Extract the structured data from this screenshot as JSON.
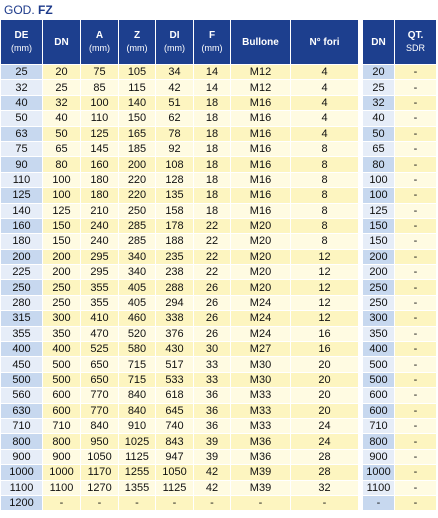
{
  "header": {
    "prefix": "GOD.",
    "code": "FZ"
  },
  "table": {
    "columns": [
      [
        "DE",
        "(mm)"
      ],
      [
        "DN"
      ],
      [
        "A",
        "(mm)"
      ],
      [
        "Z",
        "(mm)"
      ],
      [
        "DI",
        "(mm)"
      ],
      [
        "F",
        "(mm)"
      ],
      [
        "Bullone"
      ],
      [
        "N° fori"
      ],
      [
        "DN"
      ],
      [
        "QT.",
        "SDR"
      ]
    ],
    "rows": [
      [
        25,
        20,
        75,
        105,
        34,
        14,
        "M12",
        4,
        20,
        "-"
      ],
      [
        32,
        25,
        85,
        115,
        42,
        14,
        "M12",
        4,
        25,
        "-"
      ],
      [
        40,
        32,
        100,
        140,
        51,
        18,
        "M16",
        4,
        32,
        "-"
      ],
      [
        50,
        40,
        110,
        150,
        62,
        18,
        "M16",
        4,
        40,
        "-"
      ],
      [
        63,
        50,
        125,
        165,
        78,
        18,
        "M16",
        4,
        50,
        "-"
      ],
      [
        75,
        65,
        145,
        185,
        92,
        18,
        "M16",
        8,
        65,
        "-"
      ],
      [
        90,
        80,
        160,
        200,
        108,
        18,
        "M16",
        8,
        80,
        "-"
      ],
      [
        110,
        100,
        180,
        220,
        128,
        18,
        "M16",
        8,
        100,
        "-"
      ],
      [
        125,
        100,
        180,
        220,
        135,
        18,
        "M16",
        8,
        100,
        "-"
      ],
      [
        140,
        125,
        210,
        250,
        158,
        18,
        "M16",
        8,
        125,
        "-"
      ],
      [
        160,
        150,
        240,
        285,
        178,
        22,
        "M20",
        8,
        150,
        "-"
      ],
      [
        180,
        150,
        240,
        285,
        188,
        22,
        "M20",
        8,
        150,
        "-"
      ],
      [
        200,
        200,
        295,
        340,
        235,
        22,
        "M20",
        12,
        200,
        "-"
      ],
      [
        225,
        200,
        295,
        340,
        238,
        22,
        "M20",
        12,
        200,
        "-"
      ],
      [
        250,
        250,
        355,
        405,
        288,
        26,
        "M20",
        12,
        250,
        "-"
      ],
      [
        280,
        250,
        355,
        405,
        294,
        26,
        "M24",
        12,
        250,
        "-"
      ],
      [
        315,
        300,
        410,
        460,
        338,
        26,
        "M24",
        12,
        300,
        "-"
      ],
      [
        355,
        350,
        470,
        520,
        376,
        26,
        "M24",
        16,
        350,
        "-"
      ],
      [
        400,
        400,
        525,
        580,
        430,
        30,
        "M27",
        16,
        400,
        "-"
      ],
      [
        450,
        500,
        650,
        715,
        517,
        33,
        "M30",
        20,
        500,
        "-"
      ],
      [
        500,
        500,
        650,
        715,
        533,
        33,
        "M30",
        20,
        500,
        "-"
      ],
      [
        560,
        600,
        770,
        840,
        618,
        36,
        "M33",
        20,
        600,
        "-"
      ],
      [
        630,
        600,
        770,
        840,
        645,
        36,
        "M33",
        20,
        600,
        "-"
      ],
      [
        710,
        710,
        840,
        910,
        740,
        36,
        "M33",
        24,
        710,
        "-"
      ],
      [
        800,
        800,
        950,
        1025,
        843,
        39,
        "M36",
        24,
        800,
        "-"
      ],
      [
        900,
        900,
        1050,
        1125,
        947,
        39,
        "M36",
        28,
        900,
        "-"
      ],
      [
        1000,
        1000,
        1170,
        1255,
        1050,
        42,
        "M39",
        28,
        1000,
        "-"
      ],
      [
        1100,
        1100,
        1270,
        1355,
        1125,
        42,
        "M39",
        32,
        1100,
        "-"
      ],
      [
        1200,
        "-",
        "-",
        "-",
        "-",
        "-",
        "-",
        "-",
        "-",
        "-"
      ]
    ]
  }
}
